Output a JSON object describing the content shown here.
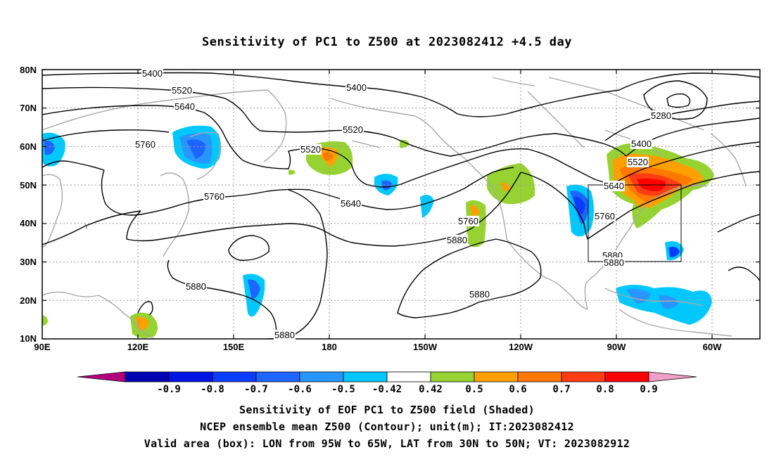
{
  "title": "Sensitivity of PC1 to Z500 at 2023082412 +4.5 day",
  "lat_labels": [
    "80N",
    "70N",
    "60N",
    "50N",
    "40N",
    "30N",
    "20N",
    "10N"
  ],
  "lon_labels": [
    "90E",
    "120E",
    "150E",
    "180",
    "150W",
    "120W",
    "90W",
    "60W"
  ],
  "contour_labels": [
    "5400",
    "5520",
    "5640",
    "5760",
    "5400",
    "5520",
    "5280",
    "5760",
    "5640",
    "5520",
    "5400",
    "5520",
    "5640",
    "5760",
    "5880",
    "5760",
    "5880",
    "5880",
    "5880",
    "5880"
  ],
  "colorbar": {
    "labels": [
      "-0.9",
      "-0.8",
      "-0.7",
      "-0.6",
      "-0.5",
      "-0.42",
      "0.42",
      "0.5",
      "0.6",
      "0.7",
      "0.8",
      "0.9"
    ],
    "colors": [
      "#b4007d",
      "#0000b4",
      "#0014e6",
      "#0a3cff",
      "#1e64ff",
      "#2896ff",
      "#00c8ff",
      "#ffffff",
      "#96d232",
      "#ffa000",
      "#ff7800",
      "#ff3c14",
      "#ff0000",
      "#f0a0c8"
    ]
  },
  "captions": [
    "Sensitivity of EOF PC1 to Z500 field (Shaded)",
    "NCEP ensemble mean Z500 (Contour); unit(m); IT:2023082412",
    "Valid area (box): LON from 95W to 65W, LAT from 30N to 50N; VT: 2023082912"
  ]
}
